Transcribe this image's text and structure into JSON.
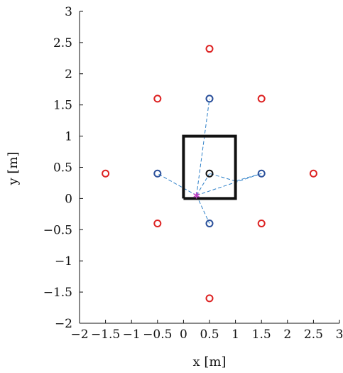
{
  "chart_data": {
    "type": "scatter",
    "xlabel": "x [m]",
    "ylabel": "y [m]",
    "xlim": [
      -2,
      3
    ],
    "ylim": [
      -2,
      3
    ],
    "xticks": [
      -2,
      -1.5,
      -1,
      -0.5,
      0,
      0.5,
      1,
      1.5,
      2,
      2.5,
      3
    ],
    "yticks": [
      -2,
      -1.5,
      -1,
      -0.5,
      0,
      0.5,
      1,
      1.5,
      2,
      2.5,
      3
    ],
    "xtick_labels": [
      "−2",
      "−1.5",
      "−1",
      "−0.5",
      "0",
      "0.5",
      "1",
      "1.5",
      "2",
      "2.5",
      "3"
    ],
    "ytick_labels": [
      "−2",
      "−1.5",
      "−1",
      "−0.5",
      "0",
      "0.5",
      "1",
      "1.5",
      "2",
      "2.5",
      "3"
    ],
    "grid": false,
    "colors": {
      "red_markers": "#dd2222",
      "blue_markers": "#2a4f9a",
      "center_marker": "#111111",
      "lines": "#2c7fc8",
      "star": "#c040c0",
      "square": "#111111"
    },
    "square": {
      "x": [
        0,
        0,
        1,
        1,
        0
      ],
      "y": [
        0,
        1,
        1,
        0,
        0
      ]
    },
    "center_point": {
      "x": 0.5,
      "y": 0.4
    },
    "source_point": {
      "x": 0.25,
      "y": 0.05
    },
    "red_points": [
      {
        "x": 0.5,
        "y": 2.4
      },
      {
        "x": -0.5,
        "y": 1.6
      },
      {
        "x": 1.5,
        "y": 1.6
      },
      {
        "x": -1.5,
        "y": 0.4
      },
      {
        "x": 2.5,
        "y": 0.4
      },
      {
        "x": -0.5,
        "y": -0.4
      },
      {
        "x": 1.5,
        "y": -0.4
      },
      {
        "x": 0.5,
        "y": -1.6
      }
    ],
    "blue_points": [
      {
        "x": 0.5,
        "y": 1.6
      },
      {
        "x": -0.5,
        "y": 0.4
      },
      {
        "x": 1.5,
        "y": 0.4
      },
      {
        "x": 0.5,
        "y": -0.4
      }
    ],
    "path_segments": [
      {
        "from": [
          0.25,
          0.05
        ],
        "to": [
          0.5,
          1.6
        ]
      },
      {
        "from": [
          0.25,
          0.05
        ],
        "to": [
          -0.5,
          0.4
        ]
      },
      {
        "from": [
          0.25,
          0.05
        ],
        "to": [
          1.5,
          0.4
        ]
      },
      {
        "from": [
          0.25,
          0.05
        ],
        "to": [
          0.5,
          -0.4
        ]
      },
      {
        "from": [
          0.25,
          0.05
        ],
        "to": [
          0.5,
          0.4
        ]
      },
      {
        "from": [
          1.5,
          0.4
        ],
        "to": [
          1.0,
          0.28
        ]
      },
      {
        "from": [
          1.0,
          0.28
        ],
        "to": [
          0.5,
          0.4
        ]
      }
    ]
  }
}
